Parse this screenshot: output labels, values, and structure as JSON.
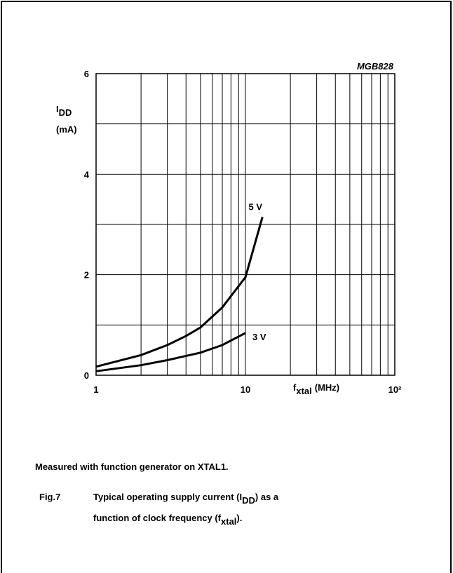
{
  "chart_data": {
    "type": "line",
    "code": "MGB828",
    "ylabel": {
      "symbol": "I",
      "subscript": "DD",
      "unit": "(mA)"
    },
    "xlabel": {
      "symbol": "f",
      "subscript": "xtal",
      "unit": "(MHz)"
    },
    "log_x": true,
    "grid": true,
    "color": "#000000",
    "xlim": [
      1,
      100
    ],
    "xticks": [
      1,
      10,
      {
        "value": 100,
        "label": "10²"
      }
    ],
    "x_minor_ticks": [
      2,
      3,
      4,
      5,
      6,
      7,
      8,
      9,
      20,
      30,
      40,
      50,
      60,
      70,
      80,
      90
    ],
    "ylim": [
      0,
      6
    ],
    "yticks": [
      0,
      2,
      4,
      6
    ],
    "y_minor_ticks": [
      1,
      3,
      5
    ],
    "series": [
      {
        "name": "5 V",
        "x": [
          1,
          2,
          3,
          4,
          5,
          7,
          10,
          13
        ],
        "values": [
          0.17,
          0.4,
          0.6,
          0.78,
          0.95,
          1.35,
          1.95,
          3.15
        ]
      },
      {
        "name": "3 V",
        "x": [
          1,
          2,
          3,
          5,
          7,
          10
        ],
        "values": [
          0.08,
          0.2,
          0.3,
          0.45,
          0.6,
          0.84
        ]
      }
    ],
    "note": "Measured with function generator on XTAL1.",
    "figure_caption": {
      "number": "Fig.7",
      "lines": [
        [
          "Typical operating supply current (I",
          "DD",
          ") as a"
        ],
        [
          "function of clock frequency (f",
          "xtal",
          ")."
        ]
      ]
    }
  }
}
